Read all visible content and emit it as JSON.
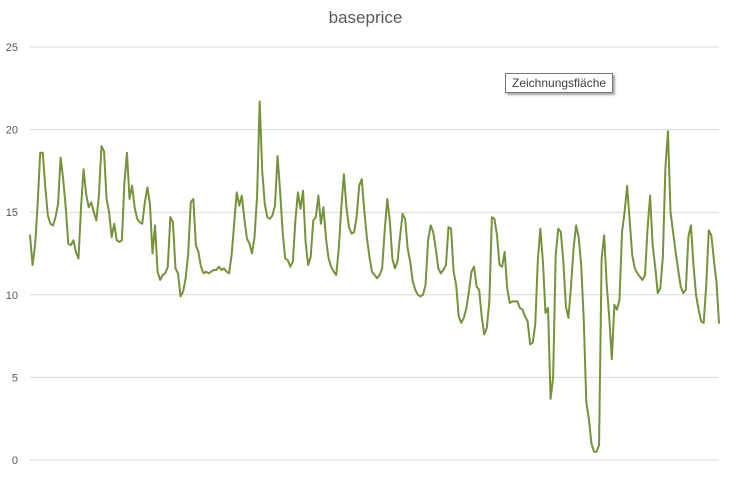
{
  "tooltip": "Zeichnungsfläche",
  "colors": {
    "series": "#76923c",
    "grid": "#d9d9d9",
    "text": "#595959"
  },
  "chart_data": {
    "type": "line",
    "title": "baseprice",
    "xlabel": "",
    "ylabel": "",
    "ylim": [
      0,
      25
    ],
    "yticks": [
      0,
      5,
      10,
      15,
      20,
      25
    ],
    "grid": true,
    "legend": false,
    "series": [
      {
        "values": [
          13.6,
          11.8,
          13.0,
          15.5,
          18.6,
          18.6,
          16.5,
          14.8,
          14.3,
          14.2,
          14.7,
          15.5,
          18.3,
          17.0,
          15.3,
          13.1,
          13.0,
          13.3,
          12.6,
          12.2,
          15.3,
          17.6,
          16.1,
          15.3,
          15.6,
          15.0,
          14.5,
          16.0,
          19.0,
          18.7,
          15.8,
          15.0,
          13.5,
          14.3,
          13.3,
          13.2,
          13.3,
          16.8,
          18.6,
          15.8,
          16.6,
          15.3,
          14.6,
          14.4,
          14.3,
          15.6,
          16.5,
          15.5,
          12.5,
          14.2,
          11.4,
          10.9,
          11.2,
          11.3,
          11.7,
          14.7,
          14.4,
          11.6,
          11.3,
          9.9,
          10.2,
          11.0,
          12.5,
          15.6,
          15.8,
          13.0,
          12.6,
          11.7,
          11.3,
          11.4,
          11.3,
          11.4,
          11.5,
          11.5,
          11.7,
          11.5,
          11.6,
          11.4,
          11.3,
          12.4,
          14.3,
          16.2,
          15.4,
          16.0,
          14.6,
          13.4,
          13.1,
          12.5,
          13.5,
          16.0,
          21.7,
          17.5,
          15.5,
          14.7,
          14.6,
          14.8,
          15.4,
          18.4,
          16.3,
          13.8,
          12.2,
          12.1,
          11.7,
          12.0,
          14.5,
          16.2,
          15.2,
          16.3,
          13.2,
          11.8,
          12.3,
          14.5,
          14.7,
          16.0,
          14.3,
          15.3,
          13.4,
          12.2,
          11.7,
          11.4,
          11.2,
          12.8,
          15.3,
          17.3,
          15.3,
          14.1,
          13.7,
          13.8,
          14.7,
          16.6,
          17.0,
          15.1,
          13.5,
          12.3,
          11.4,
          11.2,
          11.0,
          11.2,
          11.6,
          13.9,
          15.8,
          14.5,
          12.2,
          11.6,
          12.0,
          13.5,
          14.9,
          14.6,
          12.8,
          12.0,
          10.8,
          10.3,
          10.0,
          9.9,
          10.0,
          10.6,
          13.3,
          14.2,
          13.8,
          12.8,
          11.6,
          11.3,
          11.5,
          11.8,
          14.1,
          14.0,
          11.4,
          10.6,
          8.7,
          8.3,
          8.6,
          9.2,
          10.2,
          11.4,
          11.7,
          10.5,
          10.3,
          8.7,
          7.6,
          8.0,
          9.6,
          14.7,
          14.6,
          13.6,
          11.8,
          11.7,
          12.6,
          10.4,
          9.5,
          9.6,
          9.6,
          9.6,
          9.2,
          9.1,
          8.7,
          8.4,
          7.0,
          7.1,
          8.2,
          12.1,
          14.0,
          12.0,
          8.9,
          9.2,
          3.7,
          5.0,
          12.4,
          14.0,
          13.8,
          12.0,
          9.3,
          8.6,
          10.5,
          12.8,
          14.2,
          13.5,
          11.8,
          8.5,
          3.5,
          2.5,
          1.0,
          0.5,
          0.5,
          0.9,
          12.2,
          13.6,
          10.6,
          8.6,
          6.1,
          9.4,
          9.1,
          9.7,
          13.8,
          15.0,
          16.6,
          14.5,
          12.4,
          11.6,
          11.3,
          11.1,
          10.9,
          11.2,
          14.0,
          16.0,
          13.0,
          11.7,
          10.1,
          10.4,
          12.3,
          17.7,
          19.9,
          15.0,
          13.8,
          12.6,
          11.5,
          10.5,
          10.1,
          10.3,
          13.5,
          14.2,
          11.8,
          10.0,
          9.1,
          8.4,
          8.3,
          10.6,
          13.9,
          13.6,
          12.1,
          10.8,
          8.3
        ]
      }
    ]
  }
}
